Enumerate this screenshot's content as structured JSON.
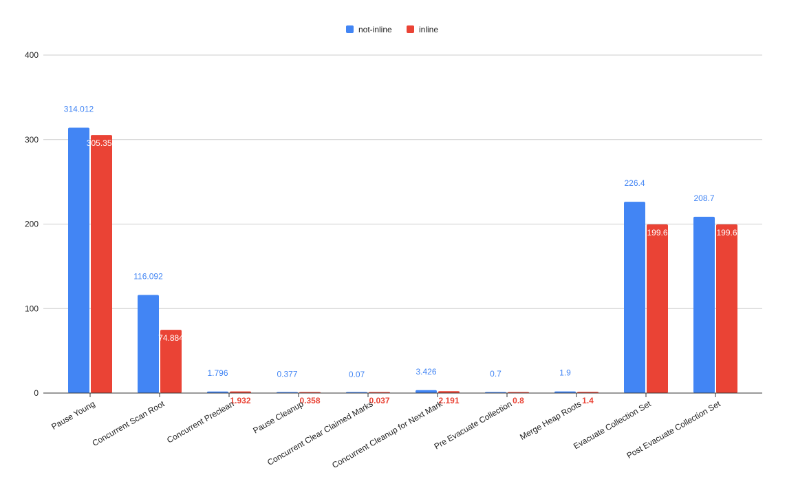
{
  "chart_data": {
    "type": "bar",
    "title": "",
    "xlabel": "",
    "ylabel": "",
    "ylim": [
      0,
      400
    ],
    "yticks": [
      0,
      100,
      200,
      300,
      400
    ],
    "grid": true,
    "legend_position": "top-center",
    "categories": [
      "Pause Young",
      "Concurrent Scan Root",
      "Concurrent Preclean",
      "Pause Cleanup",
      "Concurrent Clear Claimed Marks",
      "Concurrent Cleanup for Next Mark",
      "Pre Evacuate Collection",
      "Merge Heap Roots",
      "Evacuate Collection Set",
      "Post Evacuate Collection Set"
    ],
    "series": [
      {
        "name": "not-inline",
        "color": "#4285f4",
        "values": [
          314.012,
          116.092,
          1.796,
          0.377,
          0.07,
          3.426,
          0.7,
          1.9,
          226.4,
          208.7
        ],
        "labels": [
          "314.012",
          "116.092",
          "1.796",
          "0.377",
          "0.07",
          "3.426",
          "0.7",
          "1.9",
          "226.4",
          "208.7"
        ]
      },
      {
        "name": "inline",
        "color": "#ea4335",
        "values": [
          305.352,
          74.884,
          1.932,
          0.358,
          0.037,
          2.191,
          0.8,
          1.4,
          199.6,
          199.6
        ],
        "labels": [
          "305.352",
          "74.884",
          "1.932",
          "0.358",
          "0.037",
          "2.191",
          "0.8",
          "1.4",
          "199.6",
          "199.6"
        ]
      }
    ]
  }
}
